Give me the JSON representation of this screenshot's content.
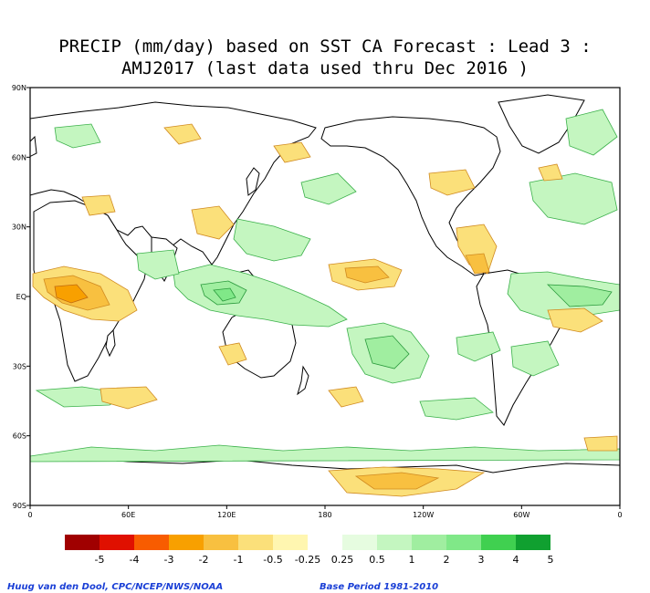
{
  "title": {
    "line1": "PRECIP (mm/day) based on SST CA Forecast : Lead 3 :",
    "line2": "AMJ2017 (last data used thru Dec 2016 )"
  },
  "axes": {
    "lat_labels": [
      "90N",
      "60N",
      "30N",
      "EQ",
      "30S",
      "60S",
      "90S"
    ],
    "lon_labels": [
      "0",
      "60E",
      "120E",
      "180",
      "120W",
      "60W",
      "0"
    ]
  },
  "legend": {
    "labels": [
      "-5",
      "-4",
      "-3",
      "-2",
      "-1",
      "-0.5",
      "-0.25",
      "0.25",
      "0.5",
      "1",
      "2",
      "3",
      "4",
      "5"
    ],
    "colors": [
      "#a00000",
      "#e01000",
      "#f85c00",
      "#f8a000",
      "#f8c040",
      "#fbe07a",
      "#fff6b0",
      "#ffffff",
      "#e6fce0",
      "#c4f6c0",
      "#a0eea0",
      "#80e888",
      "#40d050",
      "#10a030"
    ]
  },
  "footer": {
    "credit": "Huug van den Dool, CPC/NCEP/NWS/NOAA",
    "base_period": "Base Period 1981-2010"
  }
}
